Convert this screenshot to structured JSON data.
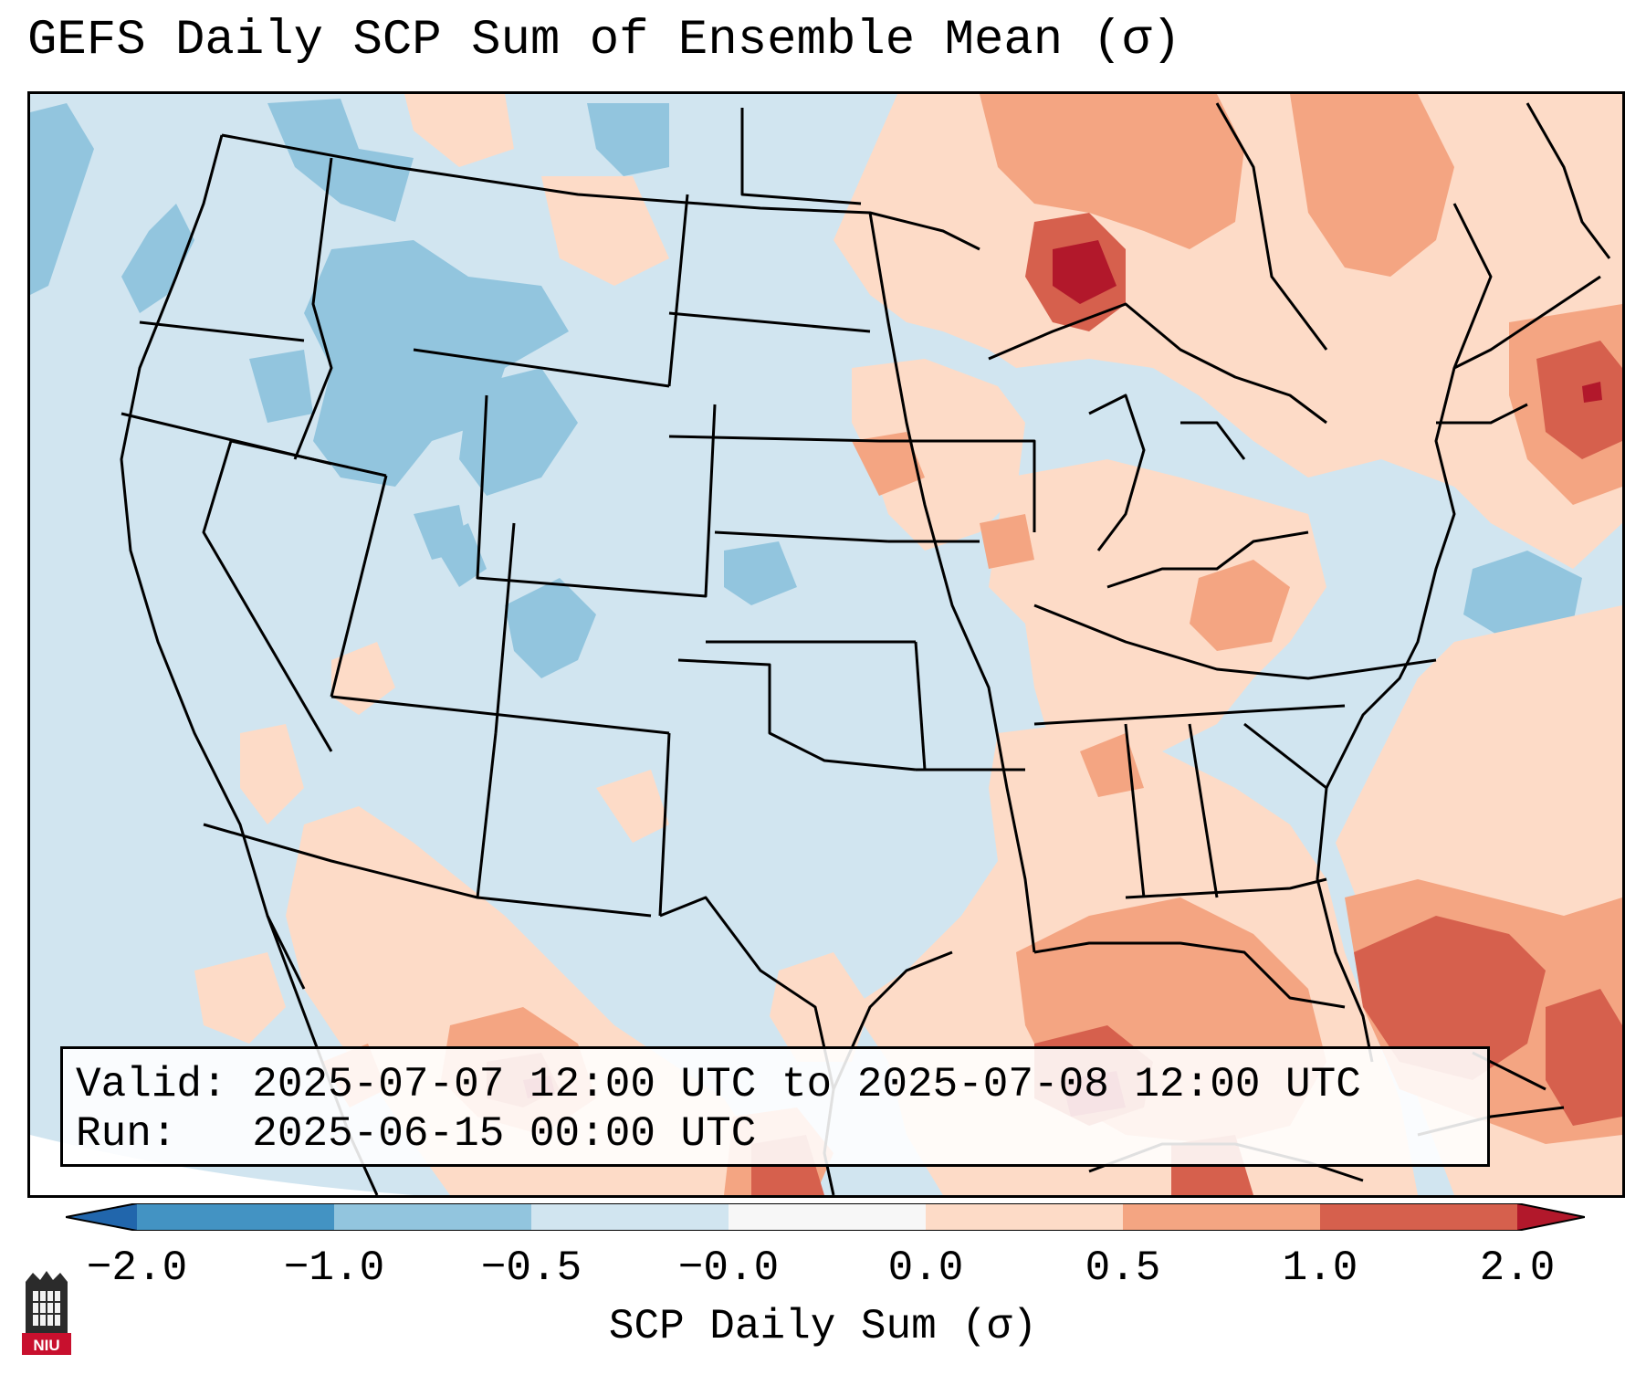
{
  "title": "GEFS Daily SCP Sum of Ensemble Mean (σ)",
  "info": {
    "valid_label": "Valid:",
    "valid_value": "2025-07-07 12:00 UTC to 2025-07-08 12:00 UTC",
    "run_label": "Run:",
    "run_value": "2025-06-15 00:00 UTC"
  },
  "colorbar": {
    "label": "SCP Daily Sum (σ)",
    "ticks": [
      "−2.0",
      "−1.0",
      "−0.5",
      "−0.0",
      "0.0",
      "0.5",
      "1.0",
      "2.0"
    ],
    "colors": [
      "#2166ac",
      "#4393c3",
      "#92c5de",
      "#d1e5f0",
      "#f7f7f7",
      "#fddbc7",
      "#f4a582",
      "#d6604d",
      "#b2182b"
    ]
  },
  "logo_text": "NIU"
}
